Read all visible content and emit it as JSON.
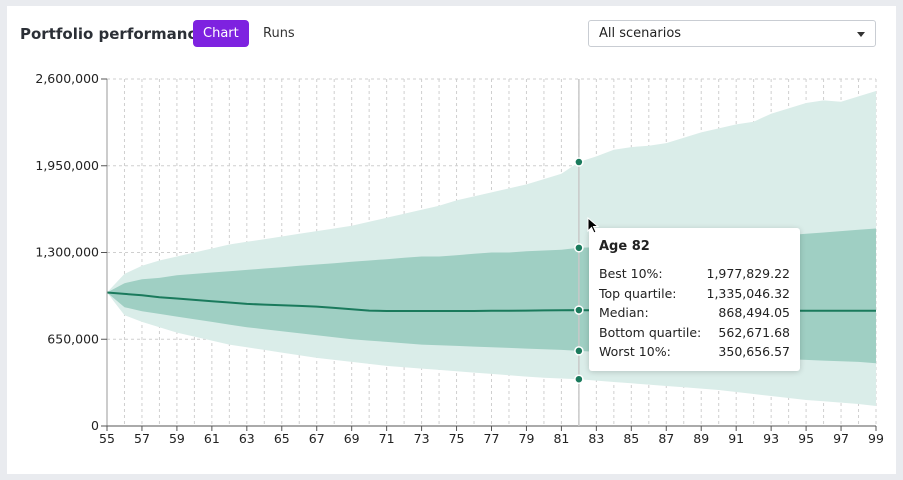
{
  "header": {
    "title": "Portfolio performance",
    "tabs": [
      "Chart",
      "Runs"
    ],
    "scenario_select": "All scenarios"
  },
  "colors": {
    "outer_band": "#daede9",
    "inner_band": "#9fcfc3",
    "median_line": "#1a7a5c",
    "accent": "#7e22e0"
  },
  "tooltip": {
    "title": "Age 82",
    "rows": [
      {
        "label": "Best 10%:",
        "value": "1,977,829.22"
      },
      {
        "label": "Top quartile:",
        "value": "1,335,046.32"
      },
      {
        "label": "Median:",
        "value": "868,494.05"
      },
      {
        "label": "Bottom quartile:",
        "value": "562,671.68"
      },
      {
        "label": "Worst 10%:",
        "value": "350,656.57"
      }
    ]
  },
  "chart_data": {
    "type": "area",
    "x_ticks": [
      "55",
      "57",
      "59",
      "61",
      "63",
      "65",
      "67",
      "69",
      "71",
      "73",
      "75",
      "77",
      "79",
      "81",
      "83",
      "85",
      "87",
      "89",
      "91",
      "93",
      "95",
      "97",
      "99"
    ],
    "y_ticks": [
      "0",
      "650,000",
      "1,300,000",
      "1,950,000",
      "2,600,000"
    ],
    "xlim": [
      55,
      99
    ],
    "ylim": [
      0,
      2600000
    ],
    "grid": true,
    "highlight_x": 82,
    "x": [
      55,
      56,
      57,
      58,
      59,
      60,
      61,
      62,
      63,
      64,
      65,
      66,
      67,
      68,
      69,
      70,
      71,
      72,
      73,
      74,
      75,
      76,
      77,
      78,
      79,
      80,
      81,
      82,
      83,
      84,
      85,
      86,
      87,
      88,
      89,
      90,
      91,
      92,
      93,
      94,
      95,
      96,
      97,
      98,
      99
    ],
    "series": [
      {
        "name": "Best 10%",
        "values": [
          1000000,
          1140000,
          1200000,
          1240000,
          1270000,
          1300000,
          1330000,
          1360000,
          1380000,
          1400000,
          1420000,
          1440000,
          1460000,
          1480000,
          1500000,
          1530000,
          1560000,
          1590000,
          1620000,
          1650000,
          1690000,
          1720000,
          1750000,
          1780000,
          1810000,
          1850000,
          1890000,
          1977829,
          2020000,
          2070000,
          2090000,
          2100000,
          2120000,
          2160000,
          2200000,
          2230000,
          2260000,
          2280000,
          2340000,
          2380000,
          2420000,
          2440000,
          2430000,
          2470000,
          2510000
        ]
      },
      {
        "name": "Top quartile",
        "values": [
          1000000,
          1070000,
          1100000,
          1110000,
          1130000,
          1140000,
          1150000,
          1160000,
          1170000,
          1180000,
          1190000,
          1200000,
          1210000,
          1220000,
          1230000,
          1240000,
          1250000,
          1260000,
          1270000,
          1270000,
          1280000,
          1290000,
          1300000,
          1300000,
          1310000,
          1315000,
          1320000,
          1335046,
          1340000,
          1350000,
          1360000,
          1370000,
          1380000,
          1390000,
          1395000,
          1400000,
          1410000,
          1420000,
          1430000,
          1430000,
          1440000,
          1450000,
          1460000,
          1470000,
          1480000
        ]
      },
      {
        "name": "Median",
        "values": [
          1000000,
          990000,
          980000,
          965000,
          955000,
          945000,
          935000,
          925000,
          915000,
          910000,
          905000,
          900000,
          895000,
          885000,
          875000,
          865000,
          862000,
          862000,
          862000,
          862000,
          862000,
          862000,
          863000,
          863000,
          865000,
          866000,
          867000,
          868494,
          866000,
          866000,
          865000,
          864000,
          864000,
          864000,
          864000,
          864000,
          864000,
          864000,
          864000,
          864000,
          864000,
          864000,
          864000,
          864000,
          864000
        ]
      },
      {
        "name": "Bottom quartile",
        "values": [
          1000000,
          890000,
          860000,
          840000,
          820000,
          800000,
          780000,
          760000,
          740000,
          725000,
          710000,
          695000,
          680000,
          665000,
          650000,
          640000,
          630000,
          620000,
          610000,
          605000,
          600000,
          595000,
          590000,
          585000,
          580000,
          575000,
          570000,
          562672,
          555000,
          550000,
          545000,
          540000,
          535000,
          530000,
          525000,
          520000,
          515000,
          510000,
          505000,
          500000,
          495000,
          490000,
          485000,
          480000,
          470000
        ]
      },
      {
        "name": "Worst 10%",
        "values": [
          1000000,
          830000,
          780000,
          740000,
          700000,
          670000,
          640000,
          610000,
          590000,
          570000,
          550000,
          530000,
          510000,
          495000,
          480000,
          465000,
          450000,
          440000,
          430000,
          420000,
          410000,
          400000,
          390000,
          380000,
          370000,
          362000,
          356000,
          350657,
          340000,
          330000,
          320000,
          310000,
          300000,
          290000,
          280000,
          270000,
          255000,
          240000,
          225000,
          210000,
          195000,
          185000,
          175000,
          165000,
          150000
        ]
      }
    ]
  }
}
